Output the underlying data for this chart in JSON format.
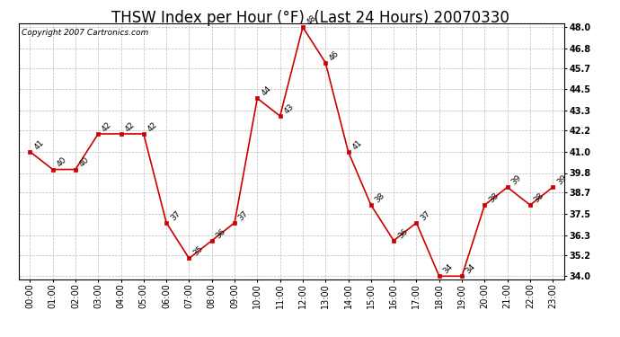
{
  "title": "THSW Index per Hour (°F)  (Last 24 Hours) 20070330",
  "copyright": "Copyright 2007 Cartronics.com",
  "hours": [
    "00:00",
    "01:00",
    "02:00",
    "03:00",
    "04:00",
    "05:00",
    "06:00",
    "07:00",
    "08:00",
    "09:00",
    "10:00",
    "11:00",
    "12:00",
    "13:00",
    "14:00",
    "15:00",
    "16:00",
    "17:00",
    "18:00",
    "19:00",
    "20:00",
    "21:00",
    "22:00",
    "23:00"
  ],
  "values": [
    41,
    40,
    40,
    42,
    42,
    42,
    37,
    35,
    36,
    37,
    44,
    43,
    48,
    46,
    41,
    38,
    36,
    37,
    34,
    34,
    38,
    39,
    38,
    39
  ],
  "line_color": "#cc0000",
  "marker_color": "#cc0000",
  "bg_color": "#ffffff",
  "plot_bg_color": "#ffffff",
  "grid_color": "#bbbbbb",
  "yticks": [
    34.0,
    35.2,
    36.3,
    37.5,
    38.7,
    39.8,
    41.0,
    42.2,
    43.3,
    44.5,
    45.7,
    46.8,
    48.0
  ],
  "ylim_min": 33.8,
  "ylim_max": 48.2,
  "title_fontsize": 12,
  "label_fontsize": 7,
  "copyright_fontsize": 6.5,
  "annotation_fontsize": 6.5
}
